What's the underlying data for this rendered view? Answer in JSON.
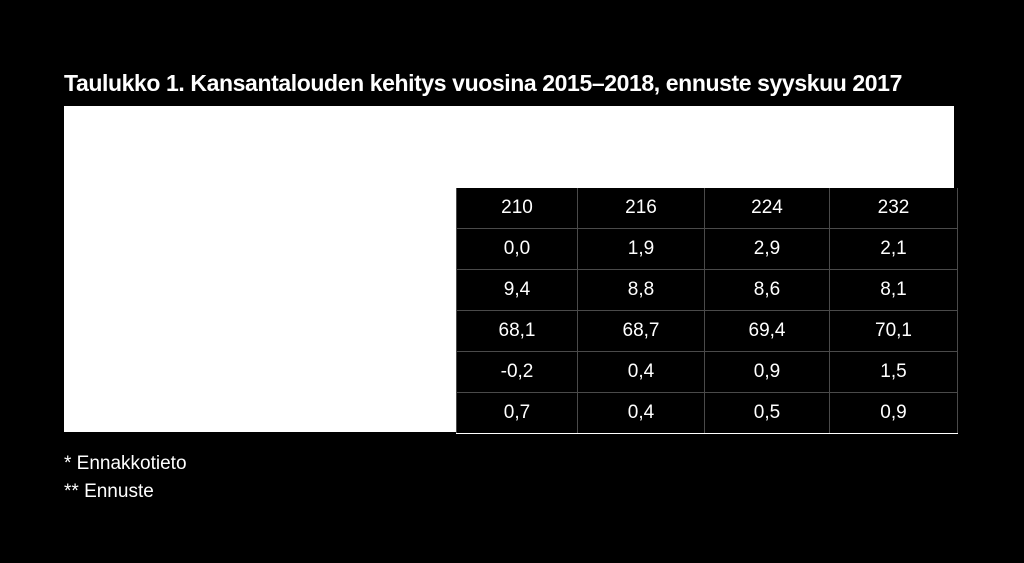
{
  "title": "Taulukko 1. Kansantalouden kehitys vuosina 2015–2018, ennuste syyskuu 2017",
  "table": {
    "rows": [
      [
        "210",
        "216",
        "224",
        "232"
      ],
      [
        "0,0",
        "1,9",
        "2,9",
        "2,1"
      ],
      [
        "9,4",
        "8,8",
        "8,6",
        "8,1"
      ],
      [
        "68,1",
        "68,7",
        "69,4",
        "70,1"
      ],
      [
        "-0,2",
        "0,4",
        "0,9",
        "1,5"
      ],
      [
        "0,7",
        "0,4",
        "0,5",
        "0,9"
      ]
    ]
  },
  "footnotes": [
    "* Ennakkotieto",
    "** Ennuste"
  ],
  "colors": {
    "background": "#000000",
    "panel": "#ffffff",
    "text": "#ffffff",
    "grid": "#4a4a4a"
  }
}
